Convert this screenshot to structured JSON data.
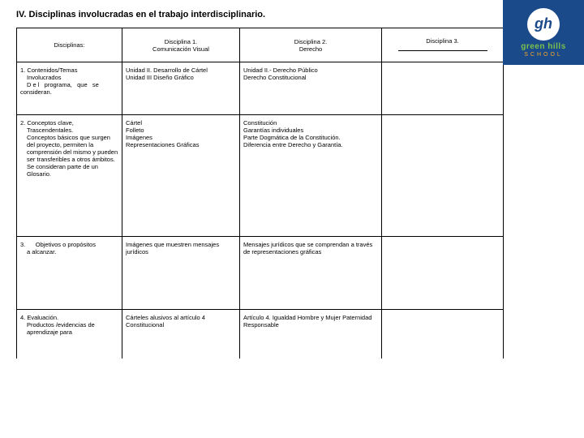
{
  "title": "IV. Disciplinas involucradas en el trabajo interdisciplinario.",
  "headers": {
    "c0": "Disciplinas:",
    "c1": "Disciplina 1.\nComunicación Visual",
    "c2": "Disciplina 2.\nDerecho",
    "c3": "Disciplina 3."
  },
  "rows": {
    "r1": {
      "label": "1. Contenidos/Temas Involucrados\n   D e l   programa,   que   se consideran.",
      "c1": "Unidad II. Desarrollo de Cártel\nUnidad III Diseño Gráfico",
      "c2": "Unidad II.- Derecho Público\nDerecho Constitucional",
      "c3": ""
    },
    "r2": {
      "label": "2. Conceptos clave, Trascendentales.\nConceptos básicos que surgen del proyecto, permiten la comprensión del mismo y pueden ser transferibles a otros ámbitos.\nSe consideran parte de un Glosario.",
      "c1": "Cártel\nFolleto\nImágenes\nRepresentaciones Gráficas",
      "c2": "Constitución\nGarantías individuales\nParte Dogmática de la Constitución.\nDiferencia entre Derecho y Garantía.",
      "c3": ""
    },
    "r3": {
      "label": "3.      Objetivos o propósitos a alcanzar.",
      "c1": "Imágenes que muestren mensajes jurídicos",
      "c2": "Mensajes jurídicos que se comprendan a través de representaciones gráficas",
      "c3": ""
    },
    "r4": {
      "label": "4. Evaluación.\n   Productos /evidencias de aprendizaje para",
      "c1": "Cárteles alusivos al artículo 4 Constitucional",
      "c2": "Artículo 4.\nIgualdad Hombre y Mujer\nPaternidad Responsable",
      "c3": ""
    }
  },
  "brand": {
    "gh": "gh",
    "name": "green hills",
    "sub": "SCHOOL"
  },
  "colors": {
    "stripe": "#1a4a8a",
    "brand_green": "#7cc04b",
    "brand_orange": "#f5a623"
  }
}
